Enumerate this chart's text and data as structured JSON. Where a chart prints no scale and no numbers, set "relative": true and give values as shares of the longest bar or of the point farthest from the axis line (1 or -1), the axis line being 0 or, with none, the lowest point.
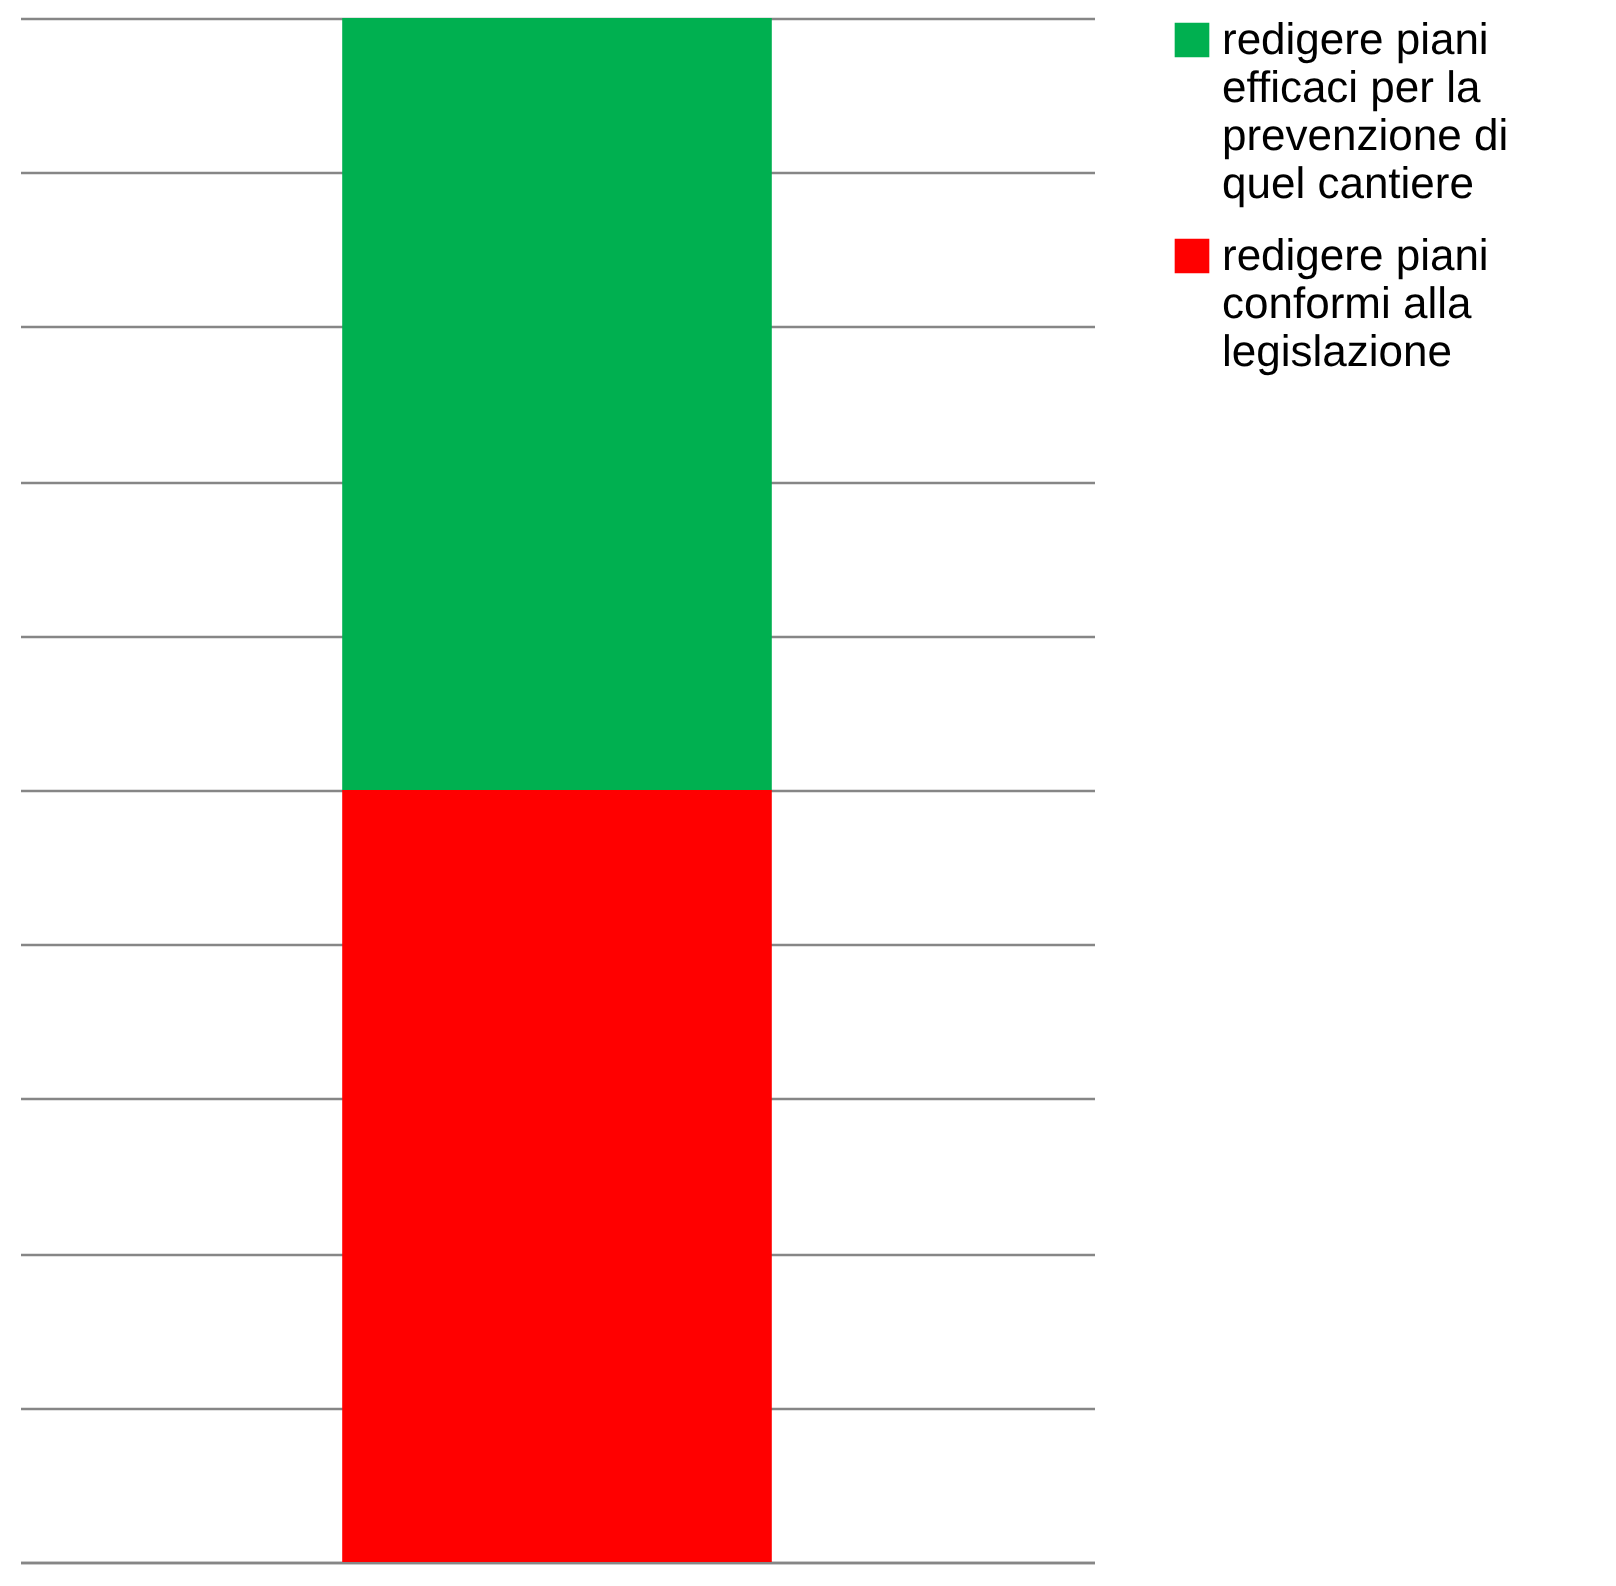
{
  "chart_data": {
    "type": "bar",
    "stacked": true,
    "relative": true,
    "categories": [
      null
    ],
    "grid": "y",
    "legend": "right",
    "series": [
      {
        "name": "redigere piani conformi alla legislazione",
        "color": "#ff0000",
        "values": [
          0.5
        ]
      },
      {
        "name": "redigere piani efficaci per la prevenzione di quel cantiere",
        "color": "#00b050",
        "values": [
          0.5
        ]
      }
    ]
  }
}
